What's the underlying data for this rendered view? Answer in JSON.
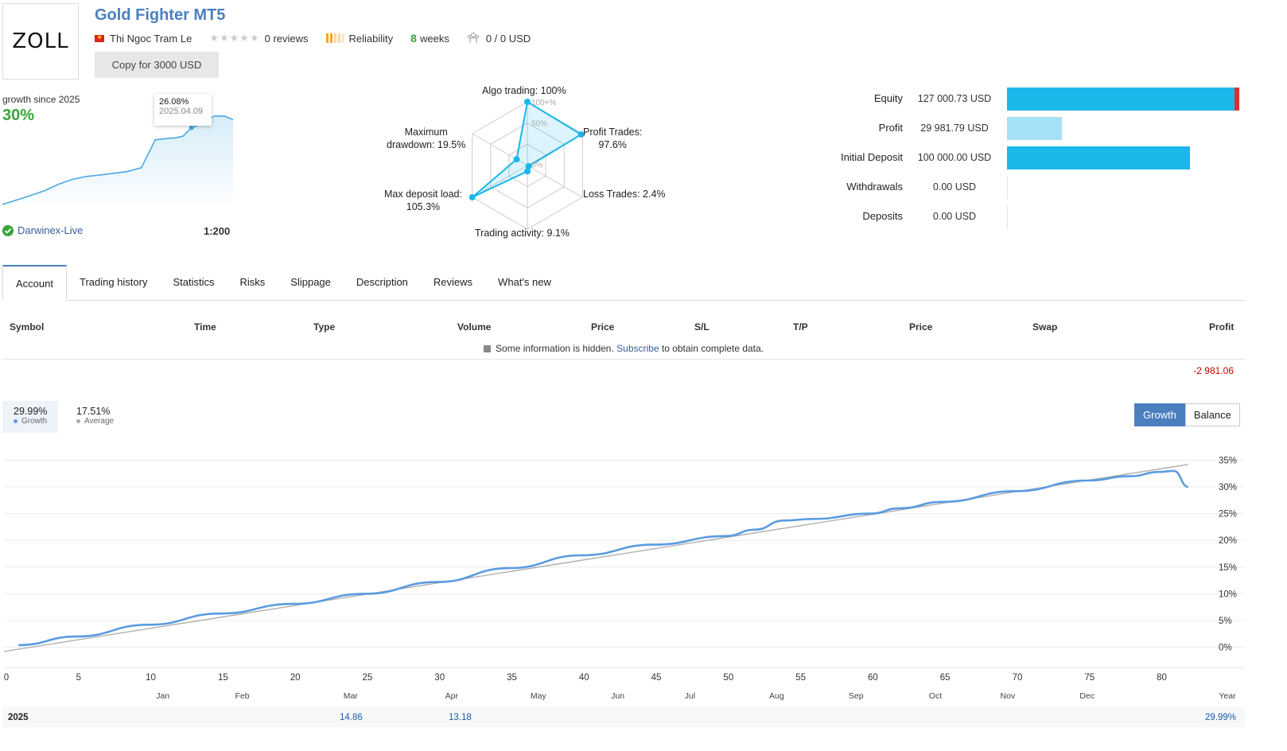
{
  "header": {
    "logo_text": "ZOLL",
    "title": "Gold Fighter MT5",
    "author": "Thi Ngoc Tram Le",
    "reviews": "0 reviews",
    "reliability": "Reliability",
    "weeks_num": "8",
    "weeks_label": "weeks",
    "subscribers": "0 / 0 USD",
    "copy_button": "Copy for 3000 USD"
  },
  "mini_chart": {
    "label": "growth since 2025",
    "growth": "30%",
    "tooltip_value": "26.08%",
    "tooltip_date": "2025.04.09",
    "broker": "Darwinex-Live",
    "leverage": "1:200"
  },
  "radar": {
    "algo": "Algo trading: 100%",
    "profit_trades_1": "Profit Trades:",
    "profit_trades_2": "97.6%",
    "loss_trades": "Loss Trades: 2.4%",
    "activity": "Trading activity: 9.1%",
    "deposit_load_1": "Max deposit load:",
    "deposit_load_2": "105.3%",
    "drawdown_1": "Maximum",
    "drawdown_2": "drawdown: 19.5%",
    "ring_100": "100+%",
    "ring_50": "50%",
    "ring_0": "0%",
    "values": {
      "algo": 100,
      "profit_trades": 97.6,
      "loss_trades": 2.4,
      "activity": 9.1,
      "deposit_load": 105.3,
      "drawdown": 19.5
    }
  },
  "balance_bars": {
    "colors": {
      "equity": "#1ab7ea",
      "profit": "#a6e2f7",
      "deposit": "#1ab7ea",
      "loss_marker": "#e03030"
    },
    "rows": [
      {
        "label": "Equity",
        "value": "127 000.73 USD",
        "amount": 127000.73
      },
      {
        "label": "Profit",
        "value": "29 981.79 USD",
        "amount": 29981.79
      },
      {
        "label": "Initial Deposit",
        "value": "100 000.00 USD",
        "amount": 100000.0
      },
      {
        "label": "Withdrawals",
        "value": "0.00 USD",
        "amount": 0
      },
      {
        "label": "Deposits",
        "value": "0.00 USD",
        "amount": 0
      }
    ]
  },
  "tabs": [
    "Account",
    "Trading history",
    "Statistics",
    "Risks",
    "Slippage",
    "Description",
    "Reviews",
    "What's new"
  ],
  "table": {
    "headers": [
      "Symbol",
      "Time",
      "Type",
      "Volume",
      "Price",
      "S/L",
      "T/P",
      "Price",
      "Swap",
      "Profit"
    ],
    "hidden_pre": "Some information is hidden.",
    "hidden_link": "Subscribe",
    "hidden_post": "to obtain complete data.",
    "total_profit": "-2 981.06"
  },
  "chart_controls": {
    "growth_value": "29.99%",
    "growth_label": "Growth",
    "average_value": "17.51%",
    "average_label": "Average",
    "btn_growth": "Growth",
    "btn_balance": "Balance"
  },
  "year_row": {
    "year": "2025",
    "mar": "14.86",
    "apr": "13.18",
    "total": "29.99%"
  },
  "chart_data": {
    "type": "line",
    "title": "",
    "xlabel": "",
    "ylabel": "",
    "xlim": [
      0,
      83
    ],
    "ylim": [
      -2,
      37
    ],
    "x_ticks": [
      0,
      5,
      10,
      15,
      20,
      25,
      30,
      35,
      40,
      45,
      50,
      55,
      60,
      65,
      70,
      75,
      80
    ],
    "y_ticks": [
      0,
      5,
      10,
      15,
      20,
      25,
      30,
      35
    ],
    "y_tick_labels": [
      "0%",
      "5%",
      "10%",
      "15%",
      "20%",
      "25%",
      "30%",
      "35%"
    ],
    "month_labels": [
      {
        "label": "Jan",
        "x": 11
      },
      {
        "label": "Feb",
        "x": 16.5
      },
      {
        "label": "Mar",
        "x": 24
      },
      {
        "label": "Apr",
        "x": 31
      },
      {
        "label": "May",
        "x": 37
      },
      {
        "label": "Jun",
        "x": 42.5
      },
      {
        "label": "Jul",
        "x": 47.5
      },
      {
        "label": "Aug",
        "x": 53.5
      },
      {
        "label": "Sep",
        "x": 59
      },
      {
        "label": "Oct",
        "x": 64.5
      },
      {
        "label": "Nov",
        "x": 69.5
      },
      {
        "label": "Dec",
        "x": 75
      }
    ],
    "x_end_label": "Year",
    "series": [
      {
        "name": "Growth",
        "color": "#5b9be0",
        "x": [
          1,
          5,
          10,
          15,
          20,
          25,
          30,
          35,
          40,
          45,
          50,
          52,
          54,
          56,
          60,
          62,
          65,
          70,
          75,
          78,
          80,
          81,
          82
        ],
        "y": [
          0.4,
          2.0,
          4.2,
          6.3,
          8.1,
          10.0,
          12.2,
          14.8,
          17.2,
          19.2,
          20.8,
          22.0,
          23.7,
          24.0,
          25.0,
          26.0,
          27.2,
          29.2,
          31.2,
          32.0,
          32.8,
          33.0,
          30.0
        ]
      },
      {
        "name": "Average",
        "color": "#aaaaaa",
        "x": [
          0,
          82
        ],
        "y": [
          -0.8,
          34.2
        ]
      }
    ]
  },
  "mini_chart_data": {
    "type": "area",
    "x": [
      0,
      5,
      10,
      15,
      20,
      25,
      30,
      35,
      40,
      45,
      50,
      55,
      60,
      62,
      65,
      68,
      72,
      76,
      78,
      80,
      83
    ],
    "y": [
      0.0,
      1.5,
      3.0,
      4.6,
      6.8,
      8.5,
      9.5,
      10.0,
      10.6,
      11.2,
      12.5,
      22.0,
      22.5,
      22.6,
      23.2,
      26.08,
      27.5,
      30.0,
      30.1,
      30.0,
      28.9
    ],
    "ylim": [
      0,
      33
    ]
  }
}
